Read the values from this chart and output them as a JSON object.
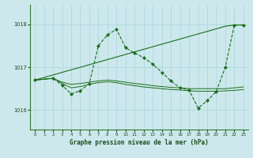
{
  "xlabel": "Graphe pression niveau de la mer (hPa)",
  "background_color": "#cde8ec",
  "grid_color": "#a8d4d8",
  "line_color": "#1a6e1a",
  "ylim": [
    1015.55,
    1018.45
  ],
  "yticks": [
    1016,
    1017,
    1018
  ],
  "xlim": [
    -0.5,
    23.5
  ],
  "xticks": [
    0,
    1,
    2,
    3,
    4,
    5,
    6,
    7,
    8,
    9,
    10,
    11,
    12,
    13,
    14,
    15,
    16,
    17,
    18,
    19,
    20,
    21,
    22,
    23
  ],
  "line1": {
    "x": [
      0,
      21,
      22,
      23
    ],
    "y": [
      1016.7,
      1017.95,
      1017.98,
      1017.98
    ]
  },
  "line2": {
    "x": [
      0,
      2,
      3,
      4,
      5,
      6,
      7,
      8,
      9,
      10,
      11,
      12,
      13,
      14,
      15,
      16,
      17,
      18,
      19,
      20,
      21,
      22,
      23
    ],
    "y": [
      1016.7,
      1016.74,
      1016.58,
      1016.38,
      1016.45,
      1016.62,
      1017.5,
      1017.75,
      1017.88,
      1017.45,
      1017.33,
      1017.22,
      1017.07,
      1016.88,
      1016.68,
      1016.52,
      1016.47,
      1016.05,
      1016.22,
      1016.43,
      1017.0,
      1017.98,
      1017.98
    ]
  },
  "line3": {
    "x": [
      0,
      2,
      3,
      4,
      5,
      6,
      7,
      8,
      9,
      10,
      11,
      12,
      13,
      14,
      15,
      16,
      17,
      18,
      19,
      20,
      21,
      22,
      23
    ],
    "y": [
      1016.7,
      1016.74,
      1016.65,
      1016.6,
      1016.62,
      1016.65,
      1016.68,
      1016.7,
      1016.68,
      1016.65,
      1016.62,
      1016.6,
      1016.57,
      1016.55,
      1016.53,
      1016.52,
      1016.5,
      1016.5,
      1016.5,
      1016.5,
      1016.5,
      1016.52,
      1016.54
    ]
  },
  "line4": {
    "x": [
      0,
      2,
      3,
      4,
      5,
      6,
      7,
      8,
      9,
      10,
      11,
      12,
      13,
      14,
      15,
      16,
      17,
      18,
      19,
      20,
      21,
      22,
      23
    ],
    "y": [
      1016.7,
      1016.74,
      1016.62,
      1016.52,
      1016.55,
      1016.6,
      1016.64,
      1016.66,
      1016.64,
      1016.6,
      1016.57,
      1016.54,
      1016.52,
      1016.5,
      1016.48,
      1016.47,
      1016.45,
      1016.44,
      1016.44,
      1016.44,
      1016.45,
      1016.46,
      1016.48
    ]
  }
}
